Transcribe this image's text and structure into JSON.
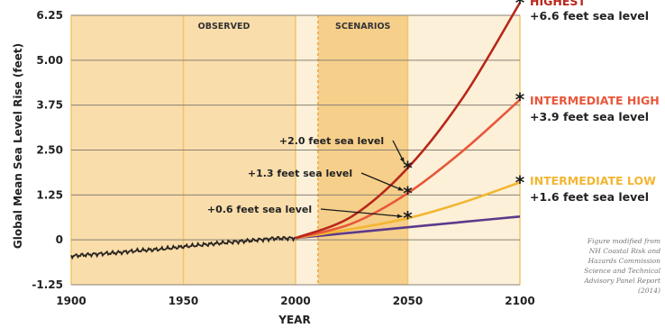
{
  "chart_data": {
    "type": "line",
    "title": "",
    "xlabel": "YEAR",
    "ylabel": "Global Mean Sea Level Rise (feet)",
    "xlim": [
      1900,
      2100
    ],
    "ylim": [
      -1.25,
      6.25
    ],
    "x_ticks": [
      "1900",
      "1950",
      "2000",
      "2050",
      "2100"
    ],
    "y_ticks": [
      "6.25",
      "5.00",
      "3.75",
      "2.50",
      "1.25",
      "0",
      "-1.25"
    ],
    "grid": "horizontal",
    "regions": [
      {
        "label": "OBSERVED",
        "x_start": 1900,
        "x_end": 2000
      },
      {
        "label": "SCENARIOS",
        "x_start": 2010,
        "x_end": 2050
      }
    ],
    "observed": {
      "x": [
        1900,
        1910,
        1920,
        1930,
        1940,
        1950,
        1960,
        1970,
        1980,
        1990,
        2000
      ],
      "y": [
        -0.45,
        -0.4,
        -0.36,
        -0.3,
        -0.26,
        -0.19,
        -0.13,
        -0.07,
        -0.02,
        0.04,
        0.05
      ]
    },
    "series": [
      {
        "name": "HIGHEST",
        "color": "#b8271b",
        "x": [
          2000,
          2025,
          2050,
          2075,
          2100
        ],
        "y": [
          0.05,
          0.65,
          2.0,
          4.0,
          6.6
        ],
        "value_label": "+6.6 feet sea level"
      },
      {
        "name": "INTERMEDIATE HIGH",
        "color": "#e8573a",
        "x": [
          2000,
          2025,
          2050,
          2075,
          2100
        ],
        "y": [
          0.05,
          0.45,
          1.3,
          2.5,
          3.9
        ],
        "value_label": "+3.9 feet sea level"
      },
      {
        "name": "INTERMEDIATE LOW",
        "color": "#f2b632",
        "x": [
          2000,
          2025,
          2050,
          2075,
          2100
        ],
        "y": [
          0.05,
          0.3,
          0.6,
          1.05,
          1.6
        ],
        "value_label": "+1.6 feet sea level"
      },
      {
        "name": "",
        "color": "#5b3a8c",
        "x": [
          2000,
          2025,
          2050,
          2075,
          2100
        ],
        "y": [
          0.05,
          0.2,
          0.35,
          0.5,
          0.65
        ]
      }
    ],
    "annotations_2050": [
      {
        "text": "+2.0 feet sea level",
        "y": 2.0
      },
      {
        "text": "+1.3 feet sea level",
        "y": 1.3
      },
      {
        "text": "+0.6 feet sea level",
        "y": 0.6
      }
    ],
    "credit": [
      "Figure modified from",
      "NH Coastal Risk and",
      "Hazards Commission",
      "Science and Technical",
      "Advisory Panel Report",
      "(2014)"
    ]
  }
}
